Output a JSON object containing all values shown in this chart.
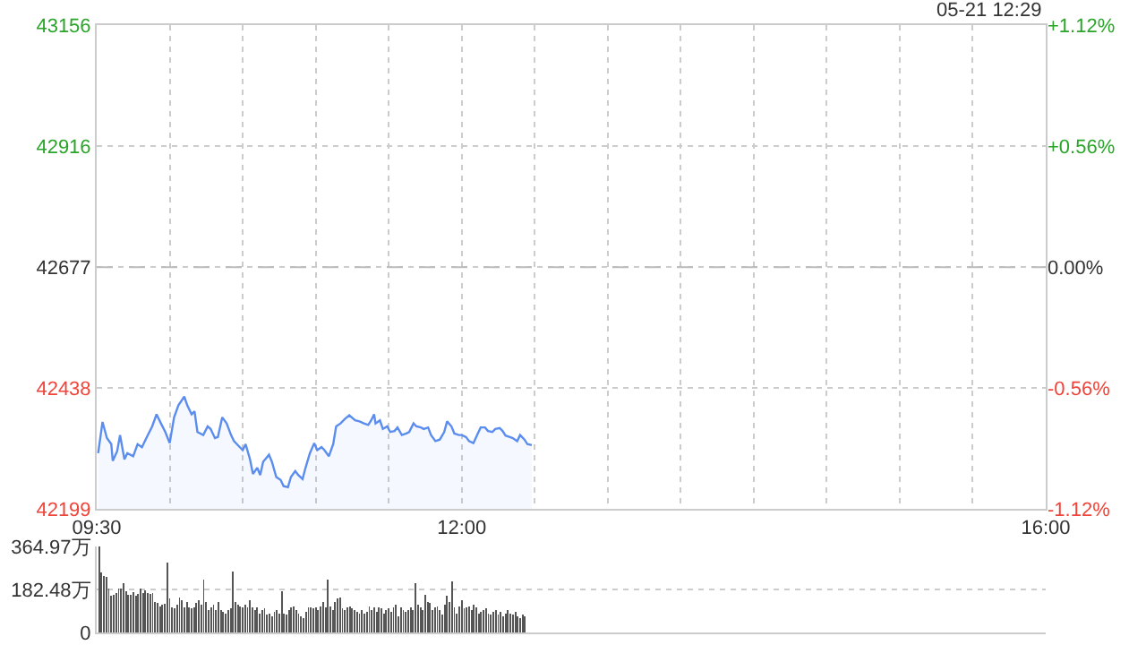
{
  "chart_data": [
    {
      "type": "area",
      "color": "#5b8def",
      "line_style": "solid",
      "grid": true,
      "legend": false,
      "annotations": [
        "05-21 12:29"
      ],
      "xlim": [
        9.5,
        16
      ],
      "xticks": [
        {
          "value": 9.5,
          "label": "09:30"
        },
        {
          "value": 10,
          "label": null
        },
        {
          "value": 10.5,
          "label": null
        },
        {
          "value": 11,
          "label": null
        },
        {
          "value": 11.5,
          "label": null
        },
        {
          "value": 12,
          "label": "12:00"
        },
        {
          "value": 12.5,
          "label": null
        },
        {
          "value": 13,
          "label": null
        },
        {
          "value": 13.5,
          "label": null
        },
        {
          "value": 14,
          "label": null
        },
        {
          "value": 14.5,
          "label": null
        },
        {
          "value": 15,
          "label": null
        },
        {
          "value": 15.5,
          "label": null
        },
        {
          "value": 16,
          "label": "16:00"
        }
      ],
      "ylim": [
        42199,
        43156
      ],
      "yticks": [
        42199,
        42438,
        42677,
        42916,
        43156
      ],
      "y2lim": [
        -1.12,
        1.12
      ],
      "y2ticks": [
        {
          "value": -1.12,
          "label": "-1.12%"
        },
        {
          "value": -0.56,
          "label": "-0.56%"
        },
        {
          "value": 0,
          "label": "0.00%"
        },
        {
          "value": 0.56,
          "label": "+0.56%"
        },
        {
          "value": 1.12,
          "label": "+1.12%"
        }
      ],
      "ref_lines": [
        {
          "axis": "y",
          "value": 42677,
          "label": null,
          "line_style": "dashed",
          "color": "#bbbbbb"
        }
      ],
      "x": [
        9.51,
        9.54,
        9.57,
        9.6,
        9.61,
        9.64,
        9.66,
        9.69,
        9.71,
        9.75,
        9.78,
        9.81,
        9.84,
        9.88,
        9.91,
        9.94,
        9.97,
        10.0,
        10.03,
        10.06,
        10.1,
        10.12,
        10.15,
        10.17,
        10.19,
        10.23,
        10.26,
        10.28,
        10.31,
        10.33,
        10.36,
        10.39,
        10.42,
        10.44,
        10.46,
        10.5,
        10.52,
        10.55,
        10.57,
        10.6,
        10.62,
        10.64,
        10.68,
        10.7,
        10.73,
        10.76,
        10.78,
        10.81,
        10.83,
        10.86,
        10.88,
        10.91,
        10.93,
        10.96,
        10.99,
        11.01,
        11.04,
        11.06,
        11.09,
        11.12,
        11.14,
        11.17,
        11.2,
        11.23,
        11.27,
        11.3,
        11.33,
        11.36,
        11.38,
        11.4,
        11.41,
        11.44,
        11.46,
        11.49,
        11.51,
        11.54,
        11.56,
        11.59,
        11.62,
        11.64,
        11.67,
        11.69,
        11.72,
        11.74,
        11.77,
        11.79,
        11.82,
        11.85,
        11.88,
        11.9,
        11.93,
        11.95,
        11.98,
        12.0,
        12.03,
        12.05,
        12.08,
        12.11,
        12.13,
        12.16,
        12.18,
        12.21,
        12.23,
        12.26,
        12.28,
        12.3,
        12.33,
        12.35,
        12.38,
        12.4,
        12.43,
        12.45,
        12.48
      ],
      "values": [
        42309,
        42371,
        42339,
        42327,
        42294,
        42313,
        42345,
        42297,
        42309,
        42303,
        42327,
        42321,
        42339,
        42362,
        42386,
        42368,
        42351,
        42329,
        42380,
        42404,
        42421,
        42404,
        42386,
        42392,
        42351,
        42345,
        42362,
        42357,
        42339,
        42341,
        42380,
        42368,
        42345,
        42333,
        42327,
        42315,
        42327,
        42297,
        42268,
        42280,
        42266,
        42292,
        42306,
        42292,
        42262,
        42256,
        42244,
        42242,
        42262,
        42274,
        42266,
        42258,
        42280,
        42309,
        42329,
        42315,
        42321,
        42315,
        42303,
        42327,
        42362,
        42368,
        42377,
        42384,
        42374,
        42372,
        42368,
        42365,
        42374,
        42386,
        42368,
        42374,
        42357,
        42362,
        42351,
        42353,
        42360,
        42345,
        42348,
        42351,
        42368,
        42362,
        42360,
        42357,
        42360,
        42345,
        42333,
        42336,
        42351,
        42372,
        42362,
        42348,
        42345,
        42345,
        42341,
        42333,
        42329,
        42348,
        42360,
        42360,
        42353,
        42351,
        42357,
        42359,
        42353,
        42344,
        42341,
        42339,
        42333,
        42345,
        42336,
        42327,
        42325
      ]
    },
    {
      "type": "bar",
      "color": "#555555",
      "grid": "y",
      "legend": false,
      "tick_labels": "y",
      "xlim": [
        9.5,
        16
      ],
      "ylim": [
        0,
        364.97
      ],
      "yticks": [
        0,
        {
          "value": 182.48,
          "label": "182.48万"
        },
        {
          "value": 364.97,
          "label": "364.97万"
        }
      ],
      "x": [
        9.517,
        9.533,
        9.55,
        9.567,
        9.583,
        9.6,
        9.617,
        9.633,
        9.65,
        9.667,
        9.683,
        9.7,
        9.717,
        9.733,
        9.75,
        9.767,
        9.783,
        9.8,
        9.817,
        9.833,
        9.85,
        9.867,
        9.883,
        9.9,
        9.917,
        9.933,
        9.95,
        9.967,
        9.983,
        10.0,
        10.017,
        10.033,
        10.05,
        10.067,
        10.083,
        10.1,
        10.117,
        10.133,
        10.15,
        10.167,
        10.183,
        10.2,
        10.217,
        10.233,
        10.25,
        10.267,
        10.283,
        10.3,
        10.317,
        10.333,
        10.35,
        10.367,
        10.383,
        10.4,
        10.417,
        10.433,
        10.45,
        10.467,
        10.483,
        10.5,
        10.517,
        10.533,
        10.55,
        10.567,
        10.583,
        10.6,
        10.617,
        10.633,
        10.65,
        10.667,
        10.683,
        10.7,
        10.717,
        10.733,
        10.75,
        10.767,
        10.783,
        10.8,
        10.817,
        10.833,
        10.85,
        10.867,
        10.883,
        10.9,
        10.917,
        10.933,
        10.95,
        10.967,
        10.983,
        11.0,
        11.017,
        11.033,
        11.05,
        11.067,
        11.083,
        11.1,
        11.117,
        11.133,
        11.15,
        11.167,
        11.183,
        11.2,
        11.217,
        11.233,
        11.25,
        11.267,
        11.283,
        11.3,
        11.317,
        11.333,
        11.35,
        11.367,
        11.383,
        11.4,
        11.417,
        11.433,
        11.45,
        11.467,
        11.483,
        11.5,
        11.517,
        11.533,
        11.55,
        11.567,
        11.583,
        11.6,
        11.617,
        11.633,
        11.65,
        11.667,
        11.683,
        11.7,
        11.717,
        11.733,
        11.75,
        11.767,
        11.783,
        11.8,
        11.817,
        11.833,
        11.85,
        11.867,
        11.883,
        11.9,
        11.917,
        11.933,
        11.95,
        11.967,
        11.983,
        12.0,
        12.017,
        12.033,
        12.05,
        12.067,
        12.083,
        12.1,
        12.117,
        12.133,
        12.15,
        12.167,
        12.183,
        12.2,
        12.217,
        12.233,
        12.25,
        12.267,
        12.283,
        12.3,
        12.317,
        12.333,
        12.35,
        12.367,
        12.383,
        12.4,
        12.417,
        12.433
      ],
      "values": [
        364,
        254,
        239,
        237,
        185,
        155,
        160,
        168,
        187,
        185,
        210,
        175,
        160,
        160,
        173,
        155,
        163,
        185,
        168,
        180,
        168,
        163,
        168,
        131,
        126,
        111,
        118,
        123,
        298,
        143,
        106,
        101,
        116,
        150,
        136,
        106,
        131,
        106,
        101,
        106,
        126,
        136,
        118,
        224,
        131,
        94,
        106,
        118,
        94,
        131,
        94,
        89,
        81,
        94,
        101,
        259,
        131,
        118,
        111,
        106,
        118,
        106,
        136,
        106,
        94,
        106,
        81,
        94,
        101,
        76,
        81,
        69,
        86,
        94,
        81,
        175,
        81,
        76,
        94,
        106,
        111,
        94,
        81,
        69,
        62,
        86,
        106,
        106,
        101,
        106,
        94,
        111,
        131,
        106,
        224,
        111,
        94,
        131,
        143,
        150,
        101,
        94,
        106,
        111,
        101,
        94,
        86,
        81,
        94,
        81,
        86,
        111,
        94,
        106,
        86,
        106,
        101,
        81,
        94,
        101,
        86,
        106,
        118,
        69,
        106,
        94,
        86,
        94,
        106,
        94,
        210,
        118,
        106,
        94,
        160,
        131,
        126,
        94,
        106,
        111,
        94,
        76,
        118,
        155,
        131,
        217,
        106,
        81,
        111,
        136,
        101,
        106,
        111,
        94,
        118,
        106,
        81,
        86,
        94,
        101,
        81,
        76,
        86,
        94,
        76,
        86,
        69,
        81,
        94,
        81,
        76,
        86,
        69,
        62,
        76,
        69
      ]
    }
  ]
}
